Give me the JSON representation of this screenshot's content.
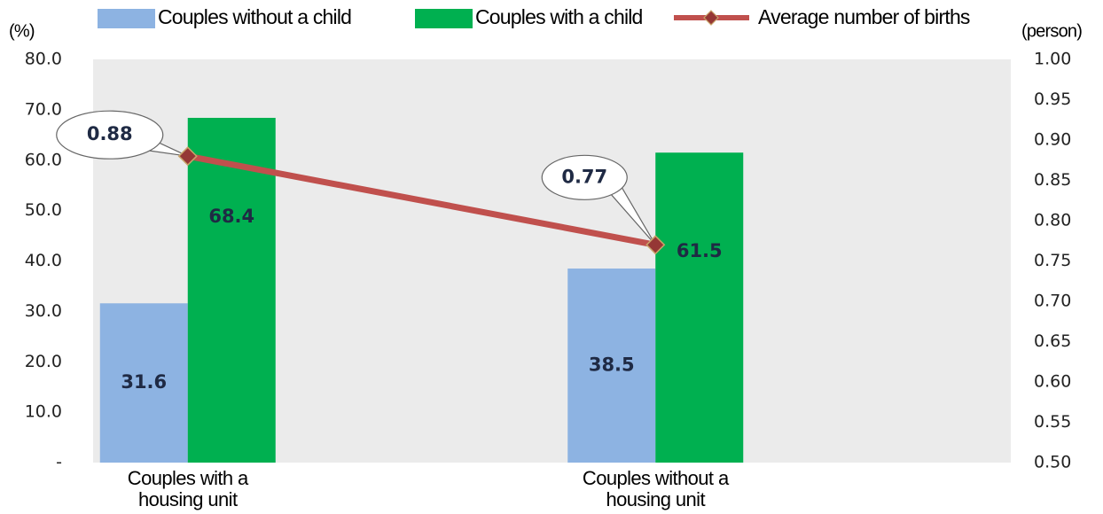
{
  "chart_data": {
    "type": "bar",
    "categories": [
      "Couples with a housing unit",
      "Couples without a housing unit"
    ],
    "series": [
      {
        "name": "Couples without a child",
        "color": "#8db3e2",
        "values": [
          31.6,
          38.5
        ]
      },
      {
        "name": "Couples with a child",
        "color": "#00b050",
        "values": [
          68.4,
          61.5
        ]
      },
      {
        "name": "Average number of births",
        "type": "line",
        "axis": "y2",
        "color": "#c0504d",
        "marker_color": "#953735",
        "values": [
          0.88,
          0.77
        ]
      }
    ],
    "y_label": "(%)",
    "y2_label": "(person)",
    "ylim": [
      0,
      80
    ],
    "yticks": [
      {
        "value": 0,
        "label": "-"
      },
      {
        "value": 10,
        "label": "10.0"
      },
      {
        "value": 20,
        "label": "20.0"
      },
      {
        "value": 30,
        "label": "30.0"
      },
      {
        "value": 40,
        "label": "40.0"
      },
      {
        "value": 50,
        "label": "50.0"
      },
      {
        "value": 60,
        "label": "60.0"
      },
      {
        "value": 70,
        "label": "70.0"
      },
      {
        "value": 80,
        "label": "80.0"
      }
    ],
    "y2lim": [
      0.5,
      1.0
    ],
    "y2ticks": [
      {
        "value": 0.5,
        "label": "0.50"
      },
      {
        "value": 0.55,
        "label": "0.55"
      },
      {
        "value": 0.6,
        "label": "0.60"
      },
      {
        "value": 0.65,
        "label": "0.65"
      },
      {
        "value": 0.7,
        "label": "0.70"
      },
      {
        "value": 0.75,
        "label": "0.75"
      },
      {
        "value": 0.8,
        "label": "0.80"
      },
      {
        "value": 0.85,
        "label": "0.85"
      },
      {
        "value": 0.9,
        "label": "0.90"
      },
      {
        "value": 0.95,
        "label": "0.95"
      },
      {
        "value": 1.0,
        "label": "1.00"
      }
    ],
    "grid": false,
    "legend": "top",
    "plot_background": "#ebebeb"
  }
}
